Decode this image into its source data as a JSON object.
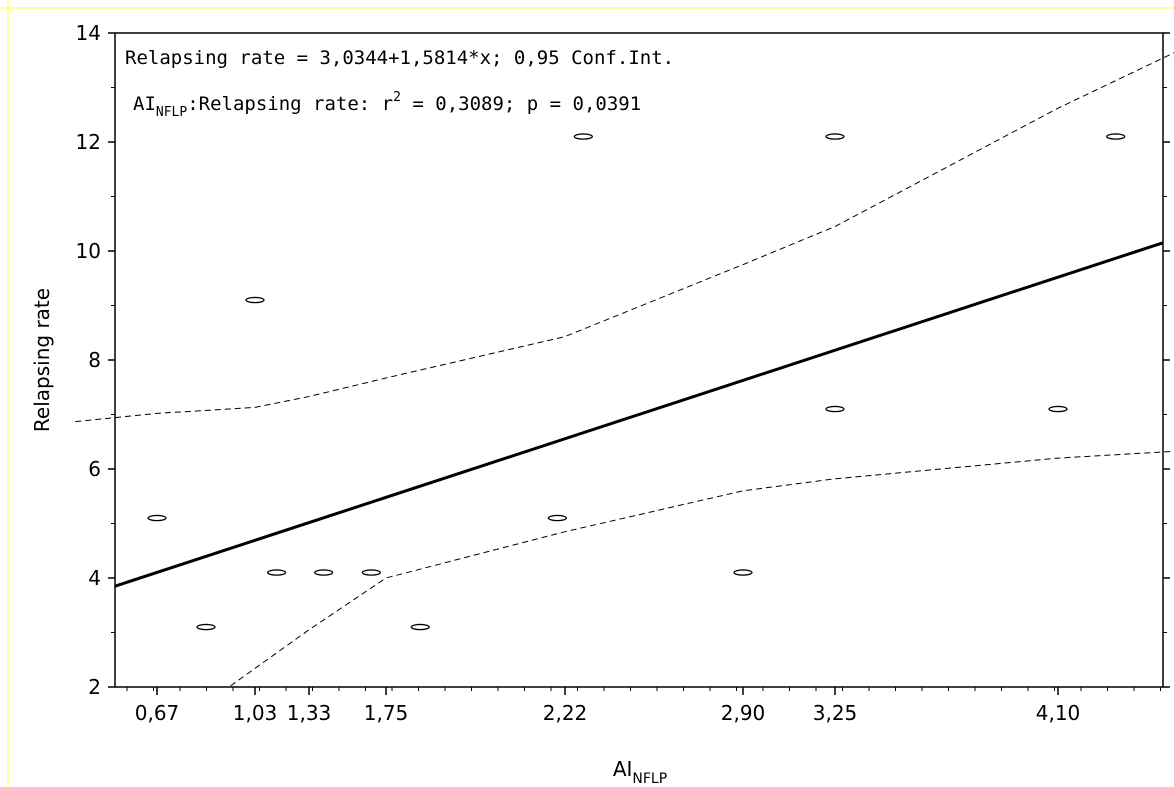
{
  "chart_data": {
    "type": "scatter",
    "annotation_line1": "Relapsing rate = 3,0344+1,5814*x; 0,95 Conf.Int.",
    "annotation_line2": {
      "var": "AI",
      "var_sub": "NFLP",
      "mid": ":Relapsing rate:  r",
      "sup": "2",
      "rest": " = 0,3089; p = 0,0391"
    },
    "xlabel": {
      "main": "AI",
      "sub": "NFLP"
    },
    "ylabel": "Relapsing rate",
    "x_ticks": [
      0.67,
      1.03,
      1.33,
      1.75,
      2.22,
      2.9,
      3.25,
      4.1
    ],
    "x_tick_labels": [
      "0,67",
      "1,03",
      "1,33",
      "1,75",
      "2,22",
      "2,90",
      "3,25",
      "4,10"
    ],
    "y_ticks": [
      2,
      4,
      6,
      8,
      10,
      12,
      14
    ],
    "y_tick_labels": [
      "2",
      "4",
      "6",
      "8",
      "10",
      "12",
      "14"
    ],
    "ylim": [
      2,
      14
    ],
    "points": [
      {
        "x": 0.67,
        "y": 5.1
      },
      {
        "x": 0.85,
        "y": 3.1
      },
      {
        "x": 1.03,
        "y": 9.1
      },
      {
        "x": 1.15,
        "y": 4.1
      },
      {
        "x": 1.41,
        "y": 4.1
      },
      {
        "x": 1.67,
        "y": 4.1
      },
      {
        "x": 1.84,
        "y": 3.1
      },
      {
        "x": 2.2,
        "y": 5.1
      },
      {
        "x": 2.29,
        "y": 12.1
      },
      {
        "x": 2.9,
        "y": 4.1
      },
      {
        "x": 3.25,
        "y": 12.1
      },
      {
        "x": 3.25,
        "y": 7.1
      },
      {
        "x": 4.1,
        "y": 7.1
      },
      {
        "x": 4.32,
        "y": 12.1
      }
    ],
    "regression": {
      "intercept": 3.0344,
      "slope": 1.5814
    },
    "confidence_level": 0.95,
    "r_squared": 0.3089,
    "p_value": 0.0391,
    "grid": false,
    "colors": {
      "frame_border": "#ffff99",
      "ink": "#000000"
    }
  }
}
